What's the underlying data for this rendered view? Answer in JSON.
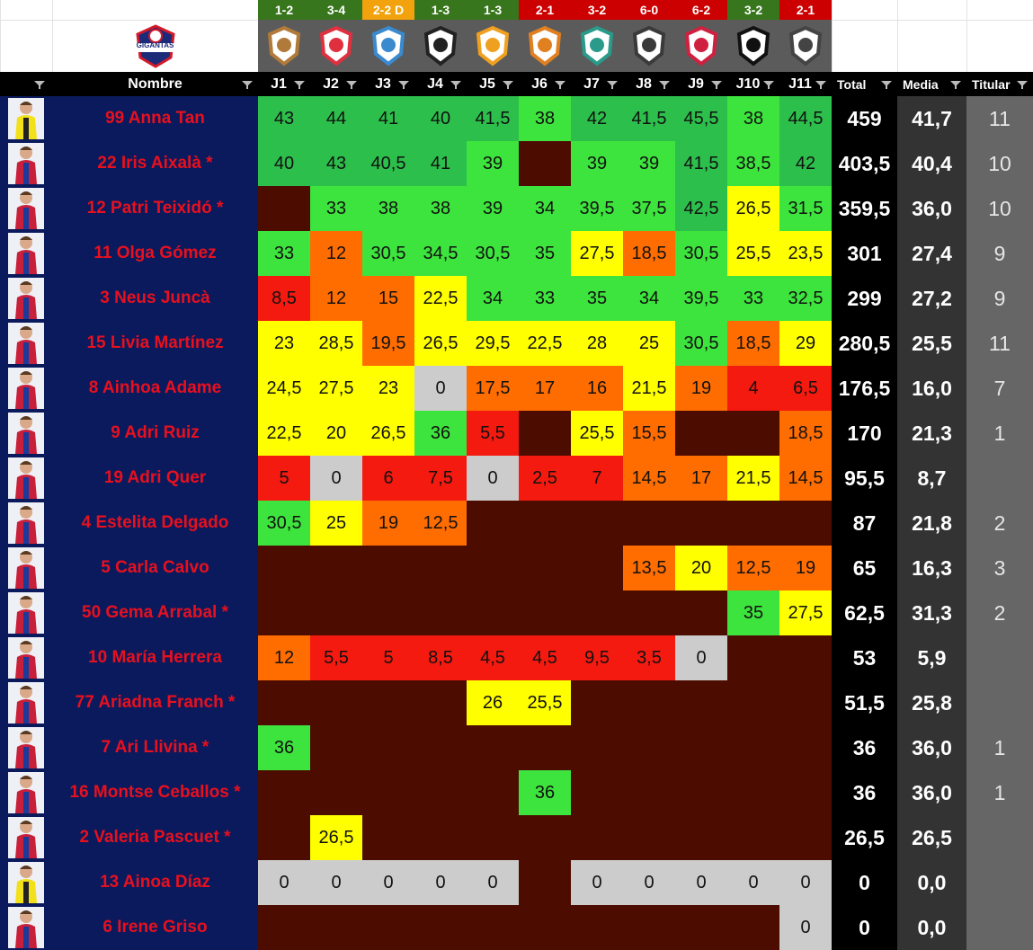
{
  "club": "GIGANTAS",
  "results": [
    {
      "label": "1-2",
      "color": "#38761d"
    },
    {
      "label": "3-4",
      "color": "#38761d"
    },
    {
      "label": "2-2 D",
      "color": "#f1a20c"
    },
    {
      "label": "1-3",
      "color": "#38761d"
    },
    {
      "label": "1-3",
      "color": "#38761d"
    },
    {
      "label": "2-1",
      "color": "#cc0000"
    },
    {
      "label": "3-2",
      "color": "#cc0000"
    },
    {
      "label": "6-0",
      "color": "#cc0000"
    },
    {
      "label": "6-2",
      "color": "#cc0000"
    },
    {
      "label": "3-2",
      "color": "#38761d"
    },
    {
      "label": "2-1",
      "color": "#cc0000"
    }
  ],
  "header": {
    "name": "Nombre",
    "rounds": [
      "J1",
      "J2",
      "J3",
      "J4",
      "J5",
      "J6",
      "J7",
      "J8",
      "J9",
      "J10",
      "J11"
    ],
    "total": "Total",
    "media": "Media",
    "titular": "Titular"
  },
  "rows": [
    {
      "name": "99 Anna Tan",
      "scores": [
        "43",
        "44",
        "41",
        "40",
        "41,5",
        "38",
        "42",
        "41,5",
        "45,5",
        "38",
        "44,5"
      ],
      "total": "459",
      "media": "41,7",
      "titular": "11"
    },
    {
      "name": "22 Iris Aixalà *",
      "scores": [
        "40",
        "43",
        "40,5",
        "41",
        "39",
        null,
        "39",
        "39",
        "41,5",
        "38,5",
        "42"
      ],
      "total": "403,5",
      "media": "40,4",
      "titular": "10"
    },
    {
      "name": "12 Patri Teixidó *",
      "scores": [
        null,
        "33",
        "38",
        "38",
        "39",
        "34",
        "39,5",
        "37,5",
        "42,5",
        "26,5",
        "31,5"
      ],
      "total": "359,5",
      "media": "36,0",
      "titular": "10"
    },
    {
      "name": "11 Olga Gómez",
      "scores": [
        "33",
        "12",
        "30,5",
        "34,5",
        "30,5",
        "35",
        "27,5",
        "18,5",
        "30,5",
        "25,5",
        "23,5"
      ],
      "total": "301",
      "media": "27,4",
      "titular": "9"
    },
    {
      "name": "3 Neus Juncà",
      "scores": [
        "8,5",
        "12",
        "15",
        "22,5",
        "34",
        "33",
        "35",
        "34",
        "39,5",
        "33",
        "32,5"
      ],
      "total": "299",
      "media": "27,2",
      "titular": "9"
    },
    {
      "name": "15 Livia Martínez",
      "scores": [
        "23",
        "28,5",
        "19,5",
        "26,5",
        "29,5",
        "22,5",
        "28",
        "25",
        "30,5",
        "18,5",
        "29"
      ],
      "total": "280,5",
      "media": "25,5",
      "titular": "11"
    },
    {
      "name": "8 Ainhoa Adame",
      "scores": [
        "24,5",
        "27,5",
        "23",
        "0",
        "17,5",
        "17",
        "16",
        "21,5",
        "19",
        "4",
        "6,5"
      ],
      "total": "176,5",
      "media": "16,0",
      "titular": "7"
    },
    {
      "name": "9 Adri Ruiz",
      "scores": [
        "22,5",
        "20",
        "26,5",
        "36",
        "5,5",
        null,
        "25,5",
        "15,5",
        null,
        null,
        "18,5"
      ],
      "total": "170",
      "media": "21,3",
      "titular": "1"
    },
    {
      "name": "19 Adri Quer",
      "scores": [
        "5",
        "0",
        "6",
        "7,5",
        "0",
        "2,5",
        "7",
        "14,5",
        "17",
        "21,5",
        "14,5"
      ],
      "total": "95,5",
      "media": "8,7",
      "titular": null
    },
    {
      "name": "4 Estelita Delgado",
      "scores": [
        "30,5",
        "25",
        "19",
        "12,5",
        null,
        null,
        null,
        null,
        null,
        null,
        null
      ],
      "total": "87",
      "media": "21,8",
      "titular": "2"
    },
    {
      "name": "5 Carla Calvo",
      "scores": [
        null,
        null,
        null,
        null,
        null,
        null,
        null,
        "13,5",
        "20",
        "12,5",
        "19"
      ],
      "total": "65",
      "media": "16,3",
      "titular": "3"
    },
    {
      "name": "50 Gema Arrabal *",
      "scores": [
        null,
        null,
        null,
        null,
        null,
        null,
        null,
        null,
        null,
        "35",
        "27,5"
      ],
      "total": "62,5",
      "media": "31,3",
      "titular": "2"
    },
    {
      "name": "10 María Herrera",
      "scores": [
        "12",
        "5,5",
        "5",
        "8,5",
        "4,5",
        "4,5",
        "9,5",
        "3,5",
        "0",
        null,
        null
      ],
      "total": "53",
      "media": "5,9",
      "titular": null
    },
    {
      "name": "77 Ariadna Franch *",
      "scores": [
        null,
        null,
        null,
        null,
        "26",
        "25,5",
        null,
        null,
        null,
        null,
        null
      ],
      "total": "51,5",
      "media": "25,8",
      "titular": null
    },
    {
      "name": "7 Ari Llivina *",
      "scores": [
        "36",
        null,
        null,
        null,
        null,
        null,
        null,
        null,
        null,
        null,
        null
      ],
      "total": "36",
      "media": "36,0",
      "titular": "1"
    },
    {
      "name": "16 Montse Ceballos *",
      "scores": [
        null,
        null,
        null,
        null,
        null,
        "36",
        null,
        null,
        null,
        null,
        null
      ],
      "total": "36",
      "media": "36,0",
      "titular": "1"
    },
    {
      "name": "2 Valeria Pascuet *",
      "scores": [
        null,
        "26,5",
        null,
        null,
        null,
        null,
        null,
        null,
        null,
        null,
        null
      ],
      "total": "26,5",
      "media": "26,5",
      "titular": null
    },
    {
      "name": "13 Ainoa Díaz",
      "scores": [
        "0",
        "0",
        "0",
        "0",
        "0",
        null,
        "0",
        "0",
        "0",
        "0",
        "0"
      ],
      "total": "0",
      "media": "0,0",
      "titular": null
    },
    {
      "name": "6 Irene Griso",
      "scores": [
        null,
        null,
        null,
        null,
        null,
        null,
        null,
        null,
        null,
        null,
        "0"
      ],
      "total": "0",
      "media": "0,0",
      "titular": null
    }
  ]
}
